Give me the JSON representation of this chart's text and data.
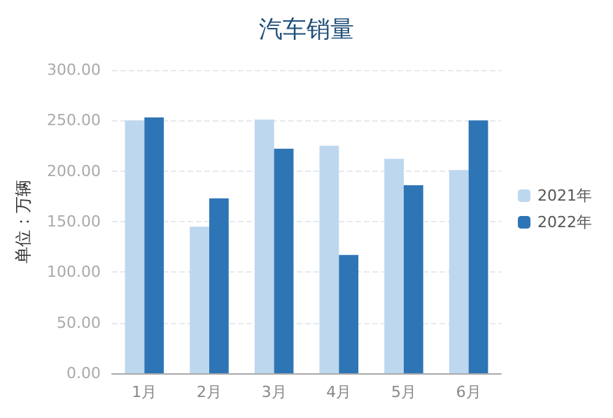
{
  "chart_data": {
    "type": "bar",
    "title": "汽车销量",
    "ylabel": "单位：万辆",
    "categories": [
      "1月",
      "2月",
      "3月",
      "4月",
      "5月",
      "6月"
    ],
    "series": [
      {
        "name": "2021年",
        "color": "#bdd7ee",
        "values": [
          250,
          145,
          251,
          225,
          212,
          201
        ]
      },
      {
        "name": "2022年",
        "color": "#2e75b6",
        "values": [
          253,
          173,
          222,
          117,
          186,
          250
        ]
      }
    ],
    "ylim": [
      0,
      300
    ],
    "yticks": [
      {
        "value": 0,
        "label": "0.00"
      },
      {
        "value": 50,
        "label": "50.00"
      },
      {
        "value": 100,
        "label": "100.00"
      },
      {
        "value": 150,
        "label": "150.00"
      },
      {
        "value": 200,
        "label": "200.00"
      },
      {
        "value": 250,
        "label": "250.00"
      },
      {
        "value": 300,
        "label": "300.00"
      }
    ],
    "grid": "y",
    "legend": "right"
  }
}
